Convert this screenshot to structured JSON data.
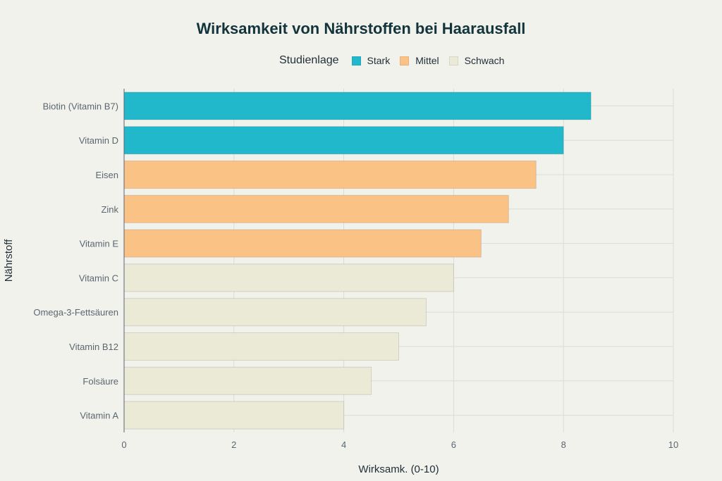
{
  "chart_data": {
    "type": "bar",
    "orientation": "horizontal",
    "title": "Wirksamkeit von Nährstoffen bei Haarausfall",
    "xlabel": "Wirksamk. (0-10)",
    "ylabel": "Nährstoff",
    "xlim": [
      0,
      10
    ],
    "xticks": [
      "0",
      "2",
      "4",
      "6",
      "8",
      "10"
    ],
    "grid": true,
    "legend": {
      "title": "Studienlage",
      "placement": "top-center",
      "entries": [
        {
          "label": "Stark",
          "color": "#21b8cc"
        },
        {
          "label": "Mittel",
          "color": "#fbc286"
        },
        {
          "label": "Schwach",
          "color": "#eaead7"
        }
      ]
    },
    "categories": [
      "Biotin (Vitamin B7)",
      "Vitamin D",
      "Eisen",
      "Zink",
      "Vitamin E",
      "Vitamin C",
      "Omega-3-Fettsäuren",
      "Vitamin B12",
      "Folsäure",
      "Vitamin A"
    ],
    "values": [
      8.5,
      8.0,
      7.5,
      7.0,
      6.5,
      6.0,
      5.5,
      5.0,
      4.5,
      4.0
    ],
    "groups": [
      "Stark",
      "Stark",
      "Mittel",
      "Mittel",
      "Mittel",
      "Schwach",
      "Schwach",
      "Schwach",
      "Schwach",
      "Schwach"
    ]
  }
}
